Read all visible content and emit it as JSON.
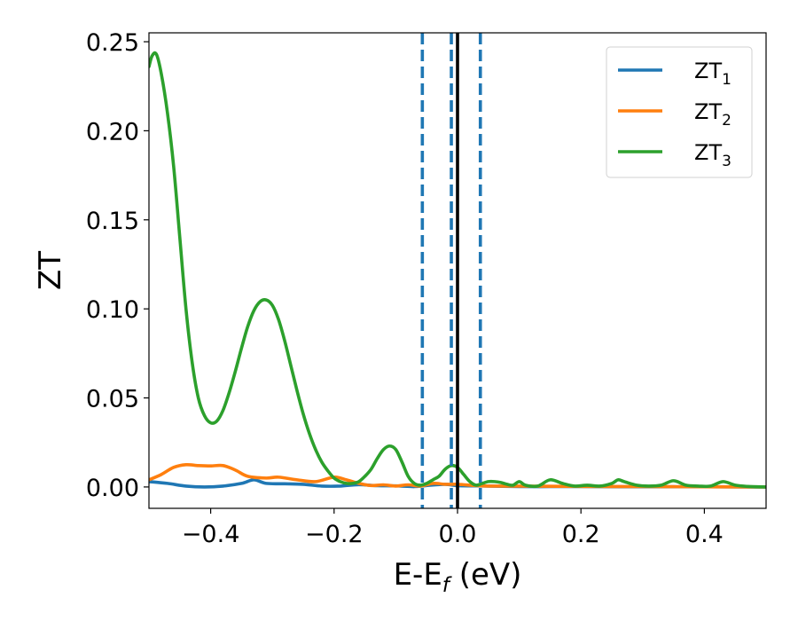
{
  "chart_data": {
    "type": "line",
    "xlabel": "E-E",
    "xlabel_sub": "f",
    "xlabel_unit": " (eV)",
    "ylabel": "ZT",
    "xlim": [
      -0.5,
      0.5
    ],
    "ylim": [
      -0.012,
      0.255
    ],
    "xticks": [
      -0.4,
      -0.2,
      0.0,
      0.2,
      0.4
    ],
    "xtick_labels": [
      "−0.4",
      "−0.2",
      "0.0",
      "0.2",
      "0.4"
    ],
    "yticks": [
      0.0,
      0.05,
      0.1,
      0.15,
      0.2,
      0.25
    ],
    "ytick_labels": [
      "0.00",
      "0.05",
      "0.10",
      "0.15",
      "0.20",
      "0.25"
    ],
    "grid": false,
    "legend_position": "top-right",
    "series": [
      {
        "name": "ZT",
        "subscript": "1",
        "color": "#1f77b4",
        "points": [
          [
            -0.5,
            0.003
          ],
          [
            -0.47,
            0.002
          ],
          [
            -0.44,
            0.0005
          ],
          [
            -0.41,
            0.0
          ],
          [
            -0.38,
            0.0005
          ],
          [
            -0.35,
            0.002
          ],
          [
            -0.33,
            0.004
          ],
          [
            -0.31,
            0.002
          ],
          [
            -0.28,
            0.0018
          ],
          [
            -0.25,
            0.0015
          ],
          [
            -0.22,
            0.0005
          ],
          [
            -0.19,
            0.0005
          ],
          [
            -0.16,
            0.0013
          ],
          [
            -0.13,
            0.0007
          ],
          [
            -0.1,
            0.0006
          ],
          [
            -0.07,
            0.0002
          ],
          [
            -0.05,
            0.0008
          ],
          [
            -0.02,
            0.0015
          ],
          [
            0.0,
            0.0007
          ],
          [
            0.03,
            0.0006
          ],
          [
            0.06,
            0.0004
          ],
          [
            0.1,
            0.0002
          ],
          [
            0.15,
            0.0002
          ],
          [
            0.2,
            0.0002
          ],
          [
            0.3,
            0.0001
          ],
          [
            0.4,
            0.0001
          ],
          [
            0.5,
            0.0
          ]
        ]
      },
      {
        "name": "ZT",
        "subscript": "2",
        "color": "#ff7f0e",
        "points": [
          [
            -0.5,
            0.004
          ],
          [
            -0.48,
            0.007
          ],
          [
            -0.46,
            0.011
          ],
          [
            -0.44,
            0.0125
          ],
          [
            -0.42,
            0.012
          ],
          [
            -0.4,
            0.0118
          ],
          [
            -0.38,
            0.012
          ],
          [
            -0.36,
            0.0095
          ],
          [
            -0.34,
            0.006
          ],
          [
            -0.31,
            0.005
          ],
          [
            -0.29,
            0.0055
          ],
          [
            -0.26,
            0.004
          ],
          [
            -0.23,
            0.003
          ],
          [
            -0.2,
            0.0055
          ],
          [
            -0.18,
            0.004
          ],
          [
            -0.16,
            0.002
          ],
          [
            -0.14,
            0.0008
          ],
          [
            -0.12,
            0.0012
          ],
          [
            -0.1,
            0.0005
          ],
          [
            -0.08,
            0.0012
          ],
          [
            -0.06,
            0.0005
          ],
          [
            -0.04,
            0.002
          ],
          [
            -0.02,
            0.0015
          ],
          [
            0.0,
            0.0015
          ],
          [
            0.02,
            0.001
          ],
          [
            0.05,
            0.0005
          ],
          [
            0.1,
            0.0005
          ],
          [
            0.2,
            0.0003
          ],
          [
            0.3,
            0.0002
          ],
          [
            0.4,
            0.0001
          ],
          [
            0.5,
            0.0
          ]
        ]
      },
      {
        "name": "ZT",
        "subscript": "3",
        "color": "#2ca02c",
        "points": [
          [
            -0.5,
            0.236
          ],
          [
            -0.495,
            0.242
          ],
          [
            -0.488,
            0.243
          ],
          [
            -0.48,
            0.232
          ],
          [
            -0.47,
            0.21
          ],
          [
            -0.46,
            0.18
          ],
          [
            -0.45,
            0.14
          ],
          [
            -0.44,
            0.1
          ],
          [
            -0.43,
            0.07
          ],
          [
            -0.42,
            0.05
          ],
          [
            -0.41,
            0.04
          ],
          [
            -0.4,
            0.036
          ],
          [
            -0.39,
            0.037
          ],
          [
            -0.38,
            0.043
          ],
          [
            -0.37,
            0.053
          ],
          [
            -0.36,
            0.065
          ],
          [
            -0.35,
            0.078
          ],
          [
            -0.34,
            0.09
          ],
          [
            -0.33,
            0.099
          ],
          [
            -0.32,
            0.104
          ],
          [
            -0.31,
            0.105
          ],
          [
            -0.3,
            0.102
          ],
          [
            -0.29,
            0.094
          ],
          [
            -0.28,
            0.082
          ],
          [
            -0.27,
            0.068
          ],
          [
            -0.26,
            0.054
          ],
          [
            -0.25,
            0.041
          ],
          [
            -0.24,
            0.03
          ],
          [
            -0.23,
            0.021
          ],
          [
            -0.22,
            0.014
          ],
          [
            -0.21,
            0.009
          ],
          [
            -0.2,
            0.005
          ],
          [
            -0.19,
            0.003
          ],
          [
            -0.18,
            0.002
          ],
          [
            -0.17,
            0.002
          ],
          [
            -0.16,
            0.003
          ],
          [
            -0.15,
            0.006
          ],
          [
            -0.14,
            0.01
          ],
          [
            -0.13,
            0.016
          ],
          [
            -0.12,
            0.021
          ],
          [
            -0.11,
            0.023
          ],
          [
            -0.1,
            0.021
          ],
          [
            -0.09,
            0.014
          ],
          [
            -0.08,
            0.006
          ],
          [
            -0.07,
            0.002
          ],
          [
            -0.06,
            0.001
          ],
          [
            -0.05,
            0.002
          ],
          [
            -0.04,
            0.004
          ],
          [
            -0.03,
            0.006
          ],
          [
            -0.02,
            0.01
          ],
          [
            -0.01,
            0.012
          ],
          [
            0.0,
            0.011
          ],
          [
            0.01,
            0.007
          ],
          [
            0.02,
            0.003
          ],
          [
            0.03,
            0.001
          ],
          [
            0.04,
            0.002
          ],
          [
            0.05,
            0.003
          ],
          [
            0.06,
            0.003
          ],
          [
            0.07,
            0.0025
          ],
          [
            0.08,
            0.0015
          ],
          [
            0.09,
            0.001
          ],
          [
            0.1,
            0.003
          ],
          [
            0.11,
            0.001
          ],
          [
            0.13,
            0.0005
          ],
          [
            0.15,
            0.004
          ],
          [
            0.17,
            0.002
          ],
          [
            0.19,
            0.0005
          ],
          [
            0.21,
            0.001
          ],
          [
            0.23,
            0.0005
          ],
          [
            0.25,
            0.002
          ],
          [
            0.26,
            0.004
          ],
          [
            0.27,
            0.003
          ],
          [
            0.29,
            0.001
          ],
          [
            0.31,
            0.0005
          ],
          [
            0.33,
            0.001
          ],
          [
            0.35,
            0.0035
          ],
          [
            0.37,
            0.001
          ],
          [
            0.39,
            0.0005
          ],
          [
            0.41,
            0.0005
          ],
          [
            0.43,
            0.003
          ],
          [
            0.45,
            0.001
          ],
          [
            0.47,
            0.0003
          ],
          [
            0.5,
            0.0
          ]
        ]
      }
    ],
    "vlines": [
      {
        "x": -0.057,
        "style": "dashed",
        "color": "#1f77b4"
      },
      {
        "x": -0.01,
        "style": "dashed",
        "color": "#1f77b4"
      },
      {
        "x": 0.0,
        "style": "solid",
        "color": "#000000"
      },
      {
        "x": 0.037,
        "style": "dashed",
        "color": "#1f77b4"
      }
    ]
  }
}
